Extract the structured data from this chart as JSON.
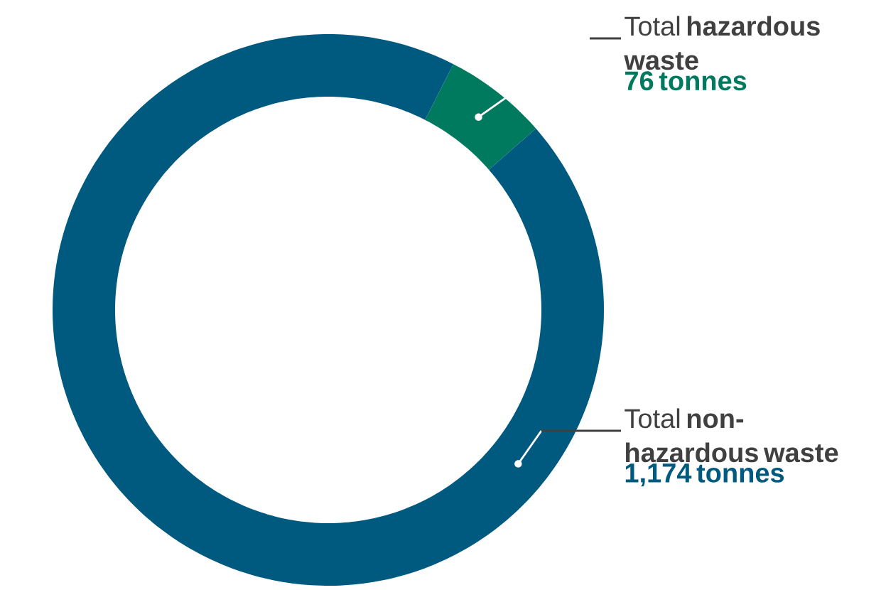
{
  "chart_data": {
    "type": "donut",
    "categories": [
      "Total **hazardous waste**",
      "Total **non-hazardous waste**"
    ],
    "values": [
      76,
      1174
    ],
    "colors": [
      "#007a5e",
      "#005a80"
    ],
    "value_labels": [
      "76 tonnes",
      "1,174 tonnes"
    ]
  }
}
